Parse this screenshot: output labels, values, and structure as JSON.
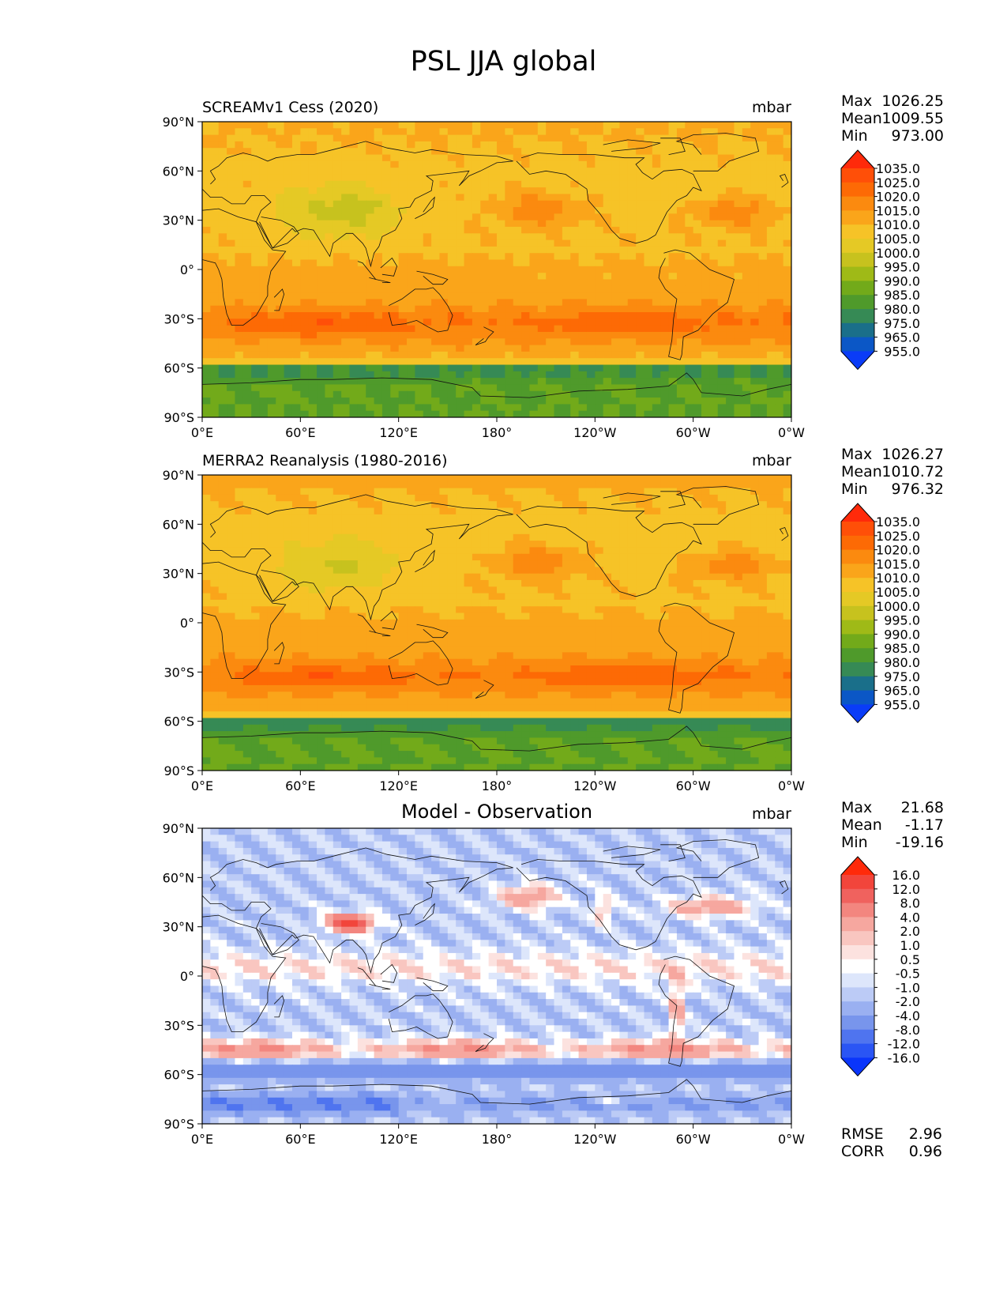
{
  "figure_title": "PSL JJA global",
  "panels": [
    {
      "title": "SCREAMv1 Cess (2020)",
      "title_style": "left",
      "units": "mbar",
      "stats": [
        {
          "label": "Max",
          "value": "1026.25"
        },
        {
          "label": "Mean",
          "value": "1009.55"
        },
        {
          "label": "Min",
          "value": "973.00"
        }
      ],
      "colorbar": {
        "labels": [
          "1035.0",
          "1025.0",
          "1020.0",
          "1015.0",
          "1010.0",
          "1005.0",
          "1000.0",
          "995.0",
          "990.0",
          "985.0",
          "980.0",
          "975.0",
          "965.0",
          "955.0"
        ],
        "colors": [
          "#ff2a0a",
          "#ff4f08",
          "#fd6a05",
          "#fb8a0f",
          "#faa51a",
          "#f6c327",
          "#e5c925",
          "#c7c21e",
          "#9fba17",
          "#72aa1a",
          "#4f9a2b",
          "#368a55",
          "#1a6f8a",
          "#0b57c6",
          "#0a3cf7"
        ]
      },
      "map_mode": "field_a"
    },
    {
      "title": "MERRA2 Reanalysis (1980-2016)",
      "title_style": "left",
      "units": "mbar",
      "stats": [
        {
          "label": "Max",
          "value": "1026.27"
        },
        {
          "label": "Mean",
          "value": "1010.72"
        },
        {
          "label": "Min",
          "value": "976.32"
        }
      ],
      "colorbar": {
        "labels": [
          "1035.0",
          "1025.0",
          "1020.0",
          "1015.0",
          "1010.0",
          "1005.0",
          "1000.0",
          "995.0",
          "990.0",
          "985.0",
          "980.0",
          "975.0",
          "965.0",
          "955.0"
        ],
        "colors": [
          "#ff2a0a",
          "#ff4f08",
          "#fd6a05",
          "#fb8a0f",
          "#faa51a",
          "#f6c327",
          "#e5c925",
          "#c7c21e",
          "#9fba17",
          "#72aa1a",
          "#4f9a2b",
          "#368a55",
          "#1a6f8a",
          "#0b57c6",
          "#0a3cf7"
        ]
      },
      "map_mode": "field_b"
    },
    {
      "title": "Model - Observation",
      "title_style": "center",
      "units": "mbar",
      "stats": [
        {
          "label": "Max",
          "value": "21.68"
        },
        {
          "label": "Mean",
          "value": "-1.17"
        },
        {
          "label": "Min",
          "value": "-19.16"
        }
      ],
      "colorbar": {
        "labels": [
          "16.0",
          "12.0",
          "8.0",
          "4.0",
          "2.0",
          "1.0",
          "0.5",
          "-0.5",
          "-1.0",
          "-2.0",
          "-4.0",
          "-8.0",
          "-12.0",
          "-16.0"
        ],
        "colors": [
          "#ff2a0a",
          "#f2453b",
          "#f0625e",
          "#f3867f",
          "#f6a79f",
          "#f9c6c0",
          "#fce2df",
          "#ffffff",
          "#dde6fb",
          "#bccbf6",
          "#9ab0f1",
          "#7895ec",
          "#4f74ef",
          "#2a55f4",
          "#0a35fb"
        ]
      },
      "extra_stats": [
        {
          "label": "RMSE",
          "value": "2.96"
        },
        {
          "label": "CORR",
          "value": "0.96"
        }
      ],
      "map_mode": "diff"
    }
  ],
  "axes": {
    "lat_ticks": [
      "90°N",
      "60°N",
      "30°N",
      "0°",
      "30°S",
      "60°S",
      "90°S"
    ],
    "lon_ticks": [
      "0°E",
      "60°E",
      "120°E",
      "180°",
      "120°W",
      "60°W",
      "0°W"
    ]
  },
  "chart_data": [
    {
      "type": "heatmap",
      "title": "SCREAMv1 Cess (2020)",
      "variable": "PSL",
      "season": "JJA",
      "units": "mbar",
      "stats": {
        "max": 1026.25,
        "mean": 1009.55,
        "min": 973.0
      },
      "levels": [
        955,
        965,
        975,
        980,
        985,
        990,
        995,
        1000,
        1005,
        1010,
        1015,
        1020,
        1025,
        1035
      ],
      "xlim": [
        0,
        360
      ],
      "ylim": [
        -90,
        90
      ]
    },
    {
      "type": "heatmap",
      "title": "MERRA2 Reanalysis (1980-2016)",
      "variable": "PSL",
      "season": "JJA",
      "units": "mbar",
      "stats": {
        "max": 1026.27,
        "mean": 1010.72,
        "min": 976.32
      },
      "levels": [
        955,
        965,
        975,
        980,
        985,
        990,
        995,
        1000,
        1005,
        1010,
        1015,
        1020,
        1025,
        1035
      ],
      "xlim": [
        0,
        360
      ],
      "ylim": [
        -90,
        90
      ]
    },
    {
      "type": "heatmap",
      "title": "Model - Observation",
      "variable": "PSL",
      "season": "JJA",
      "units": "mbar",
      "stats": {
        "max": 21.68,
        "mean": -1.17,
        "min": -19.16,
        "rmse": 2.96,
        "corr": 0.96
      },
      "levels": [
        -16,
        -12,
        -8,
        -4,
        -2,
        -1,
        -0.5,
        0.5,
        1,
        2,
        4,
        8,
        12,
        16
      ],
      "xlim": [
        0,
        360
      ],
      "ylim": [
        -90,
        90
      ]
    }
  ]
}
